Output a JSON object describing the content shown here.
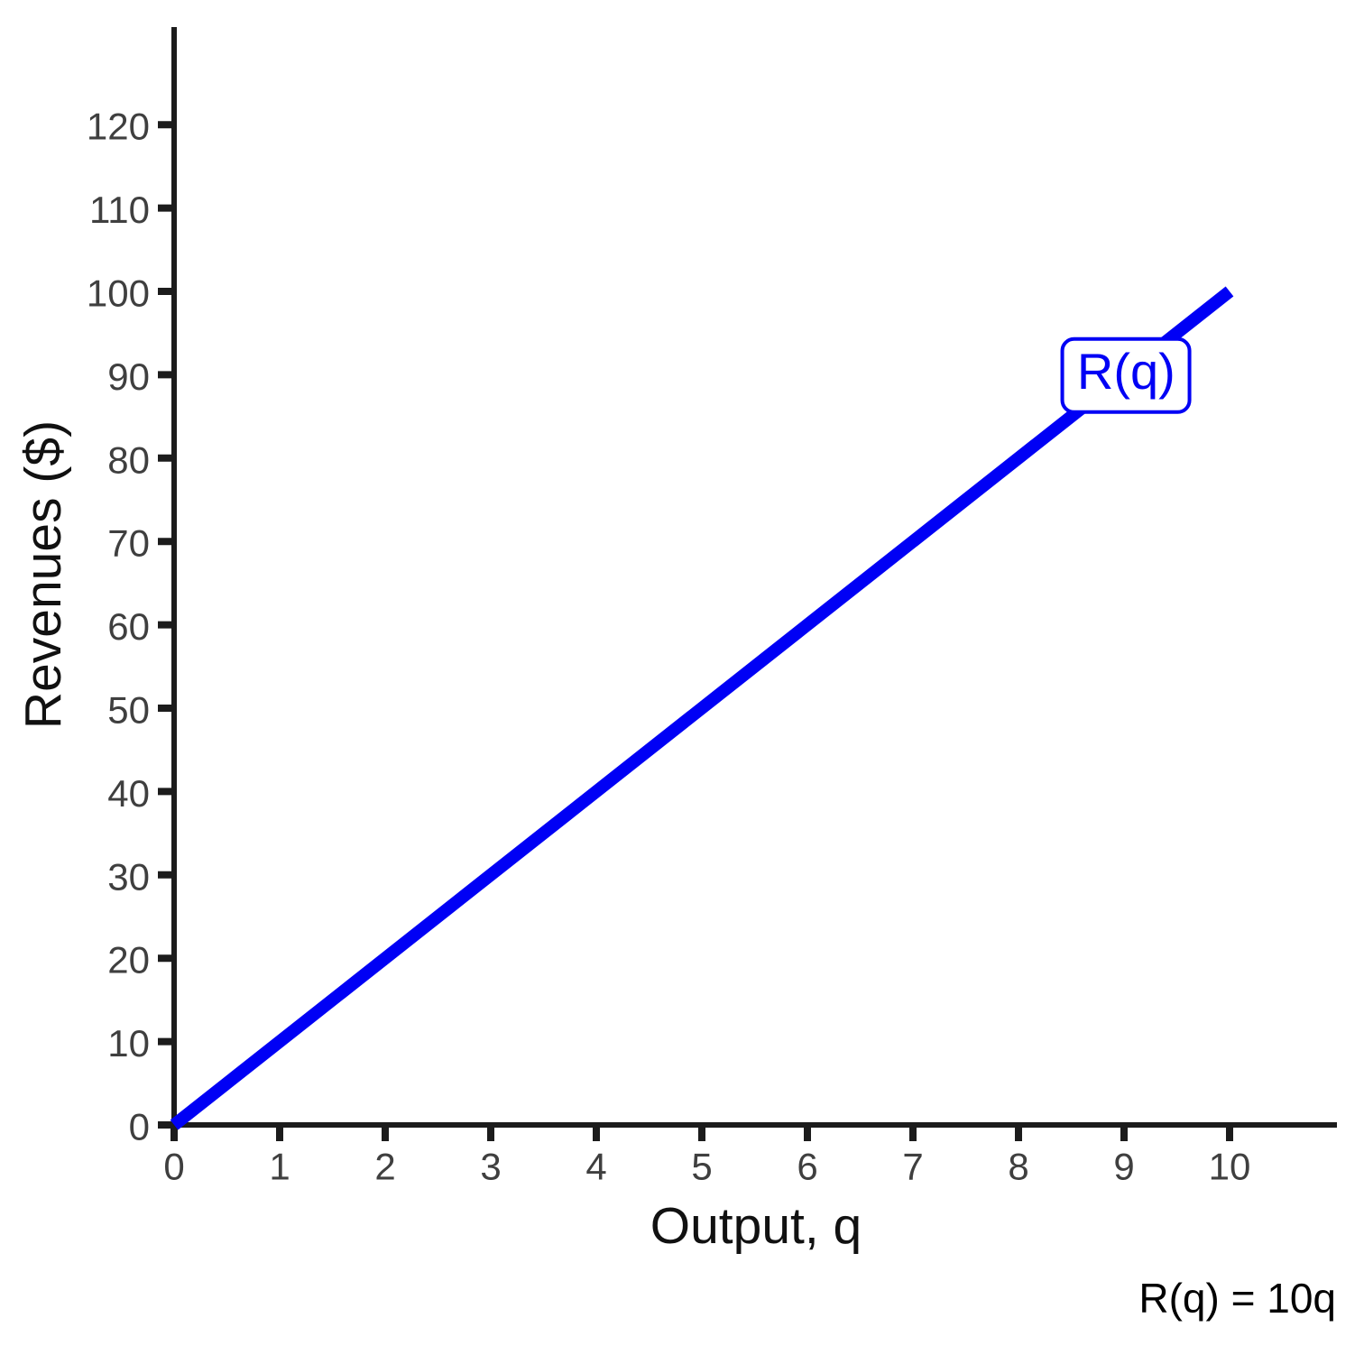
{
  "colors": {
    "background": "#ffffff",
    "axis": "#1c1c1c",
    "tick_label": "#3f3f3f",
    "axis_title": "#111111",
    "line": "#0000f5",
    "curve_label_text": "#0000f5",
    "curve_label_border": "#0000f5",
    "equation_text": "#000000"
  },
  "chart_data": {
    "type": "line",
    "title": "",
    "xlabel": "Output, q",
    "ylabel": "Revenues ($)",
    "x_ticks": [
      0,
      1,
      2,
      3,
      4,
      5,
      6,
      7,
      8,
      9,
      10
    ],
    "y_ticks": [
      0,
      10,
      20,
      30,
      40,
      50,
      60,
      70,
      80,
      90,
      100,
      110,
      120
    ],
    "xlim": [
      0,
      11.02
    ],
    "ylim": [
      0,
      131.7
    ],
    "grid": false,
    "legend_position": "none",
    "series": [
      {
        "name": "R(q)",
        "x": [
          0,
          10
        ],
        "y": [
          0,
          100
        ],
        "color": "#0000f5"
      }
    ],
    "curve_label": {
      "text": "R(q)",
      "anchor_x": 9.02,
      "anchor_y": 89.9
    },
    "equation_annotation": {
      "text": "R(q) = 10q"
    }
  }
}
